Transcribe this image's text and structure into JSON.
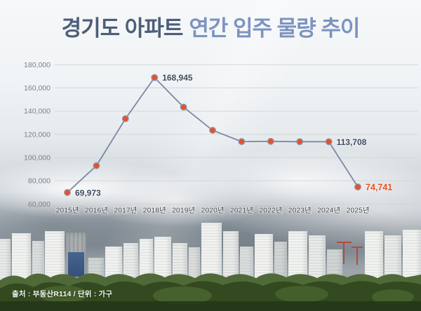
{
  "title": {
    "part1": "경기도 아파트",
    "part2": "연간 입주 물량 추이"
  },
  "source_note": "출처 : 부동산R114 / 단위 : 가구",
  "colors": {
    "title_primary": "#4d5e79",
    "title_secondary": "#7d93c0",
    "line": "#7c89a4",
    "dot_fill": "#e5512b",
    "dot_ring": "#8d99ae",
    "point_label": "#3e4d62",
    "point_label_highlight": "#e8501f",
    "grid": "#d2d6d8",
    "y_tick_text": "#7d8187",
    "x_tick_text": "#45494e"
  },
  "chart_data": {
    "type": "line",
    "title": "경기도 아파트 연간 입주 물량 추이",
    "x": [
      "2015년",
      "2016년",
      "2017년",
      "2018년",
      "2019년",
      "2020년",
      "2021년",
      "2022년",
      "2023년",
      "2024년",
      "2025년"
    ],
    "values": [
      69973,
      93000,
      133500,
      168945,
      143500,
      123500,
      113800,
      114000,
      113700,
      113708,
      74741
    ],
    "labeled_points": [
      {
        "index": 0,
        "text": "69,973",
        "highlight": false
      },
      {
        "index": 3,
        "text": "168,945",
        "highlight": false
      },
      {
        "index": 9,
        "text": "113,708",
        "highlight": false
      },
      {
        "index": 10,
        "text": "74,741",
        "highlight": true
      }
    ],
    "ylim": [
      60000,
      180000
    ],
    "ytick_step": 20000,
    "ytick_labels": [
      "60,000",
      "80,000",
      "100,000",
      "120,000",
      "140,000",
      "160,000",
      "180,000"
    ],
    "grid": "horizontal",
    "legend": "none",
    "unit_note": "가구"
  }
}
